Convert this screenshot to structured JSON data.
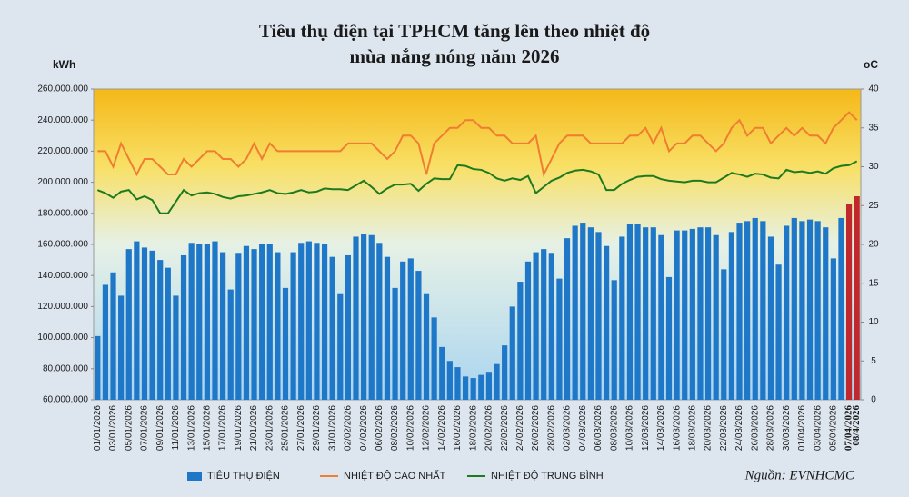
{
  "chart_data": {
    "type": "bar",
    "title": "Tiêu thụ điện tại TPHCM tăng lên theo nhiệt độ",
    "subtitle": "mùa nắng nóng năm 2026",
    "y_label": "kWh",
    "y2_label": "oC",
    "source": "Nguồn: EVNHCMC",
    "categories": [
      "01/01/2026",
      null,
      "03/01/2026",
      null,
      "05/01/2026",
      null,
      "07/01/2026",
      null,
      "09/01/2026",
      null,
      "11/01/2026",
      null,
      "13/01/2026",
      null,
      "15/01/2026",
      null,
      "17/01/2026",
      null,
      "19/01/2026",
      null,
      "21/01/2026",
      null,
      "23/01/2026",
      null,
      "25/01/2026",
      null,
      "27/01/2026",
      null,
      "29/01/2026",
      null,
      "31/01/2026",
      null,
      "02/02/2026",
      null,
      "04/02/2026",
      null,
      "06/02/2026",
      null,
      "08/02/2026",
      null,
      "10/02/2026",
      null,
      "12/02/2026",
      null,
      "14/02/2026",
      null,
      "16/02/2026",
      null,
      "18/02/2026",
      null,
      "20/02/2026",
      null,
      "22/02/2026",
      null,
      "24/02/2026",
      null,
      "26/02/2026",
      null,
      "28/02/2026",
      null,
      "02/03/2026",
      null,
      "04/03/2026",
      null,
      "06/03/2026",
      null,
      "08/03/2026",
      null,
      "10/03/2026",
      null,
      "12/03/2026",
      null,
      "14/03/2026",
      null,
      "16/03/2026",
      null,
      "18/03/2026",
      null,
      "20/03/2026",
      null,
      "22/03/2026",
      null,
      "24/03/2026",
      null,
      "26/03/2026",
      null,
      "28/03/2026",
      null,
      "30/03/2026",
      null,
      "01/04/2026",
      null,
      "03/04/2026",
      null,
      "05/04/2026",
      null,
      "07/04/2026",
      "08/4/2026"
    ],
    "series": [
      {
        "name": "TIÊU THỤ ĐIỆN",
        "type": "bar",
        "color": "#1f77c8",
        "values": [
          101000000,
          134000000,
          142000000,
          127000000,
          157000000,
          162000000,
          158000000,
          156000000,
          150000000,
          145000000,
          127000000,
          153000000,
          161000000,
          160000000,
          160000000,
          162000000,
          155000000,
          131000000,
          154000000,
          159000000,
          157000000,
          160000000,
          160000000,
          155000000,
          132000000,
          155000000,
          161000000,
          162000000,
          161000000,
          160000000,
          152000000,
          128000000,
          153000000,
          165000000,
          167000000,
          166000000,
          161000000,
          152000000,
          132000000,
          149000000,
          151000000,
          143000000,
          128000000,
          113000000,
          94000000,
          85000000,
          81000000,
          75000000,
          74000000,
          76000000,
          78000000,
          83000000,
          95000000,
          120000000,
          136000000,
          149000000,
          155000000,
          157000000,
          154000000,
          138000000,
          164000000,
          172000000,
          174000000,
          171000000,
          168000000,
          159000000,
          137000000,
          165000000,
          173000000,
          173000000,
          171000000,
          171000000,
          166000000,
          139000000,
          169000000,
          169000000,
          170000000,
          171000000,
          171000000,
          166000000,
          144000000,
          168000000,
          174000000,
          175000000,
          177000000,
          175000000,
          165000000,
          147000000,
          172000000,
          177000000,
          175000000,
          176000000,
          175000000,
          171000000,
          151000000,
          177000000,
          186000000,
          191000000
        ],
        "colors": [
          "#1f77c8",
          "#1f77c8",
          "#1f77c8",
          "#1f77c8",
          "#1f77c8",
          "#1f77c8",
          "#1f77c8",
          "#1f77c8",
          "#1f77c8",
          "#1f77c8",
          "#1f77c8",
          "#1f77c8",
          "#1f77c8",
          "#1f77c8",
          "#1f77c8",
          "#1f77c8",
          "#1f77c8",
          "#1f77c8",
          "#1f77c8",
          "#1f77c8",
          "#1f77c8",
          "#1f77c8",
          "#1f77c8",
          "#1f77c8",
          "#1f77c8",
          "#1f77c8",
          "#1f77c8",
          "#1f77c8",
          "#1f77c8",
          "#1f77c8",
          "#1f77c8",
          "#1f77c8",
          "#1f77c8",
          "#1f77c8",
          "#1f77c8",
          "#1f77c8",
          "#1f77c8",
          "#1f77c8",
          "#1f77c8",
          "#1f77c8",
          "#1f77c8",
          "#1f77c8",
          "#1f77c8",
          "#1f77c8",
          "#1f77c8",
          "#1f77c8",
          "#1f77c8",
          "#1f77c8",
          "#1f77c8",
          "#1f77c8",
          "#1f77c8",
          "#1f77c8",
          "#1f77c8",
          "#1f77c8",
          "#1f77c8",
          "#1f77c8",
          "#1f77c8",
          "#1f77c8",
          "#1f77c8",
          "#1f77c8",
          "#1f77c8",
          "#1f77c8",
          "#1f77c8",
          "#1f77c8",
          "#1f77c8",
          "#1f77c8",
          "#1f77c8",
          "#1f77c8",
          "#1f77c8",
          "#1f77c8",
          "#1f77c8",
          "#1f77c8",
          "#1f77c8",
          "#1f77c8",
          "#1f77c8",
          "#1f77c8",
          "#1f77c8",
          "#1f77c8",
          "#1f77c8",
          "#1f77c8",
          "#1f77c8",
          "#1f77c8",
          "#1f77c8",
          "#1f77c8",
          "#1f77c8",
          "#1f77c8",
          "#1f77c8",
          "#1f77c8",
          "#1f77c8",
          "#1f77c8",
          "#1f77c8",
          "#1f77c8",
          "#1f77c8",
          "#1f77c8",
          "#1f77c8",
          "#1f77c8",
          "#c0282d",
          "#c0282d"
        ]
      },
      {
        "name": "NHIỆT ĐỘ CAO NHẤT",
        "type": "line",
        "axis": "y2",
        "color": "#ef7d32",
        "values": [
          32,
          32,
          30,
          33,
          31,
          29,
          31,
          31,
          30,
          29,
          29,
          31,
          30,
          31,
          32,
          32,
          31,
          31,
          30,
          31,
          33,
          31,
          33,
          32,
          32,
          32,
          32,
          32,
          32,
          32,
          32,
          32,
          33,
          33,
          33,
          33,
          32,
          31,
          32,
          34,
          34,
          33,
          29,
          33,
          34,
          35,
          35,
          36,
          36,
          35,
          35,
          34,
          34,
          33,
          33,
          33,
          34,
          29,
          31,
          33,
          34,
          34,
          34,
          33,
          33,
          33,
          33,
          33,
          34,
          34,
          35,
          33,
          35,
          32,
          33,
          33,
          34,
          34,
          33,
          32,
          33,
          35,
          36,
          34,
          35,
          35,
          33,
          34,
          35,
          34,
          35,
          34,
          34,
          33,
          35,
          36,
          37,
          36
        ]
      },
      {
        "name": "NHIỆT ĐỘ TRUNG BÌNH",
        "type": "line",
        "axis": "y2",
        "color": "#1e7a1e",
        "values": [
          27,
          26.6,
          26,
          26.8,
          27,
          25.8,
          26.2,
          25.7,
          24,
          24,
          25.5,
          27,
          26.3,
          26.6,
          26.7,
          26.5,
          26.1,
          25.9,
          26.2,
          26.3,
          26.5,
          26.7,
          27,
          26.6,
          26.5,
          26.7,
          27,
          26.7,
          26.8,
          27.2,
          27.1,
          27.1,
          27,
          27.6,
          28.2,
          27.4,
          26.5,
          27.2,
          27.7,
          27.7,
          27.8,
          26.9,
          27.8,
          28.5,
          28.4,
          28.4,
          30.2,
          30.1,
          29.7,
          29.6,
          29.2,
          28.5,
          28.2,
          28.5,
          28.3,
          28.8,
          26.6,
          27.4,
          28.2,
          28.6,
          29.2,
          29.5,
          29.6,
          29.4,
          29,
          27,
          27,
          27.8,
          28.3,
          28.7,
          28.8,
          28.8,
          28.4,
          28.2,
          28.1,
          28,
          28.2,
          28.2,
          28,
          28,
          28.6,
          29.2,
          29,
          28.7,
          29.1,
          29,
          28.6,
          28.5,
          29.6,
          29.3,
          29.4,
          29.2,
          29.4,
          29.1,
          29.8,
          30.1,
          30.2,
          30.7
        ]
      }
    ],
    "ylim": [
      60000000,
      260000000
    ],
    "yticks": [
      {
        "value": 60000000,
        "label": "60.000.000"
      },
      {
        "value": 80000000,
        "label": "80.000.000"
      },
      {
        "value": 100000000,
        "label": "100.000.000"
      },
      {
        "value": 120000000,
        "label": "120.000.000"
      },
      {
        "value": 140000000,
        "label": "140.000.000"
      },
      {
        "value": 160000000,
        "label": "160.000.000"
      },
      {
        "value": 180000000,
        "label": "180.000.000"
      },
      {
        "value": 200000000,
        "label": "200.000.000"
      },
      {
        "value": 220000000,
        "label": "220.000.000"
      },
      {
        "value": 240000000,
        "label": "240.000.000"
      },
      {
        "value": 260000000,
        "label": "260.000.000"
      }
    ],
    "y2lim": [
      0,
      40
    ],
    "y2ticks": [
      0,
      5,
      10,
      15,
      20,
      25,
      30,
      35,
      40
    ],
    "legend": "bottom"
  }
}
